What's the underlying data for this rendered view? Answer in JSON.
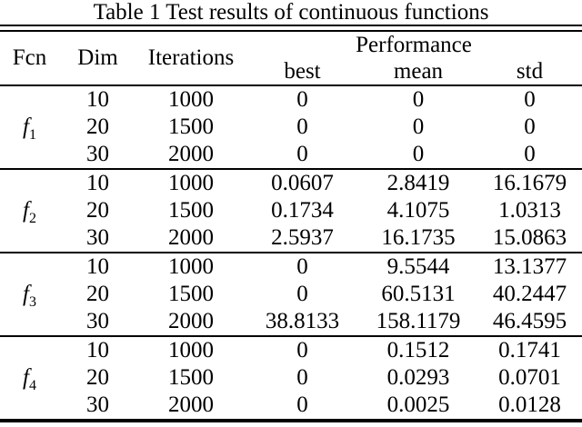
{
  "title": "Table 1 Test results of continuous functions",
  "colors": {
    "text": "#000000",
    "background": "#ffffff",
    "rule": "#000000"
  },
  "table": {
    "headers": {
      "fcn": "Fcn",
      "dim": "Dim",
      "iterations": "Iterations",
      "performance": "Performance",
      "best": "best",
      "mean": "mean",
      "std": "std"
    },
    "groups": [
      {
        "fcn": "f",
        "fcn_sub": "1",
        "rows": [
          {
            "dim": "10",
            "iterations": "1000",
            "best": "0",
            "mean": "0",
            "std": "0"
          },
          {
            "dim": "20",
            "iterations": "1500",
            "best": "0",
            "mean": "0",
            "std": "0"
          },
          {
            "dim": "30",
            "iterations": "2000",
            "best": "0",
            "mean": "0",
            "std": "0"
          }
        ]
      },
      {
        "fcn": "f",
        "fcn_sub": "2",
        "rows": [
          {
            "dim": "10",
            "iterations": "1000",
            "best": "0.0607",
            "mean": "2.8419",
            "std": "16.1679"
          },
          {
            "dim": "20",
            "iterations": "1500",
            "best": "0.1734",
            "mean": "4.1075",
            "std": "1.0313"
          },
          {
            "dim": "30",
            "iterations": "2000",
            "best": "2.5937",
            "mean": "16.1735",
            "std": "15.0863"
          }
        ]
      },
      {
        "fcn": "f",
        "fcn_sub": "3",
        "rows": [
          {
            "dim": "10",
            "iterations": "1000",
            "best": "0",
            "mean": "9.5544",
            "std": "13.1377"
          },
          {
            "dim": "20",
            "iterations": "1500",
            "best": "0",
            "mean": "60.5131",
            "std": "40.2447"
          },
          {
            "dim": "30",
            "iterations": "2000",
            "best": "38.8133",
            "mean": "158.1179",
            "std": "46.4595"
          }
        ]
      },
      {
        "fcn": "f",
        "fcn_sub": "4",
        "rows": [
          {
            "dim": "10",
            "iterations": "1000",
            "best": "0",
            "mean": "0.1512",
            "std": "0.1741"
          },
          {
            "dim": "20",
            "iterations": "1500",
            "best": "0",
            "mean": "0.0293",
            "std": "0.0701"
          },
          {
            "dim": "30",
            "iterations": "2000",
            "best": "0",
            "mean": "0.0025",
            "std": "0.0128"
          }
        ]
      }
    ]
  }
}
